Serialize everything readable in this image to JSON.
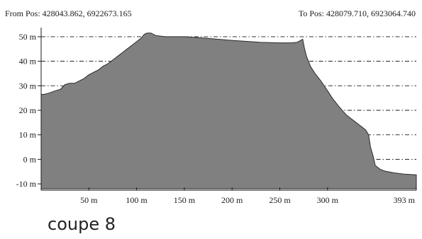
{
  "header": {
    "from_pos": "From Pos: 428043.862, 6922673.165",
    "to_pos": "To Pos: 428079.710, 6923064.740"
  },
  "caption": "coupe 8",
  "colors": {
    "fill": "#808080",
    "outline": "#2a2a2a",
    "grid": "#1a1a1a",
    "text": "#1a1a1a"
  },
  "chart_data": {
    "type": "area",
    "title": "",
    "xlabel": "",
    "ylabel": "",
    "xlim": [
      0,
      393
    ],
    "ylim": [
      -12,
      52
    ],
    "grid": "horizontal dash-dot",
    "legend": "none",
    "x_ticks": [
      {
        "value": 50,
        "label": "50 m"
      },
      {
        "value": 100,
        "label": "100 m"
      },
      {
        "value": 150,
        "label": "150 m"
      },
      {
        "value": 200,
        "label": "200 m"
      },
      {
        "value": 250,
        "label": "250 m"
      },
      {
        "value": 300,
        "label": "300 m"
      },
      {
        "value": 393,
        "label": "393 m"
      }
    ],
    "y_ticks": [
      {
        "value": 50,
        "label": "50 m"
      },
      {
        "value": 40,
        "label": "40 m"
      },
      {
        "value": 30,
        "label": "30 m"
      },
      {
        "value": 20,
        "label": "20 m"
      },
      {
        "value": 10,
        "label": "10 m"
      },
      {
        "value": 0,
        "label": "0 m"
      },
      {
        "value": -10,
        "label": "-10 m"
      }
    ],
    "series": [
      {
        "x": [
          0,
          3,
          8,
          15,
          20,
          25,
          30,
          35,
          40,
          45,
          50,
          55,
          60,
          65,
          70,
          75,
          80,
          85,
          90,
          95,
          100,
          105,
          108,
          111,
          115,
          120,
          130,
          150,
          170,
          200,
          230,
          250,
          262,
          268,
          272,
          274,
          276,
          278,
          282,
          287,
          293,
          300,
          305,
          312,
          320,
          330,
          340,
          343,
          345,
          348,
          350,
          355,
          360,
          370,
          380,
          393
        ],
        "y": [
          26.5,
          26.5,
          27,
          28,
          28.5,
          30.5,
          31,
          31,
          32,
          33,
          34.5,
          35.5,
          36.5,
          38,
          39,
          40.5,
          42,
          43.5,
          45,
          46.5,
          48,
          49.5,
          51,
          51.5,
          51.5,
          50.5,
          50,
          50,
          49.5,
          48.5,
          47.7,
          47.5,
          47.5,
          47.7,
          48.5,
          49,
          45,
          42,
          38,
          35,
          32,
          28,
          25,
          21.5,
          18,
          15,
          12,
          10,
          5,
          1,
          -2.5,
          -4,
          -4.8,
          -5.5,
          -6,
          -6.3
        ]
      }
    ]
  }
}
